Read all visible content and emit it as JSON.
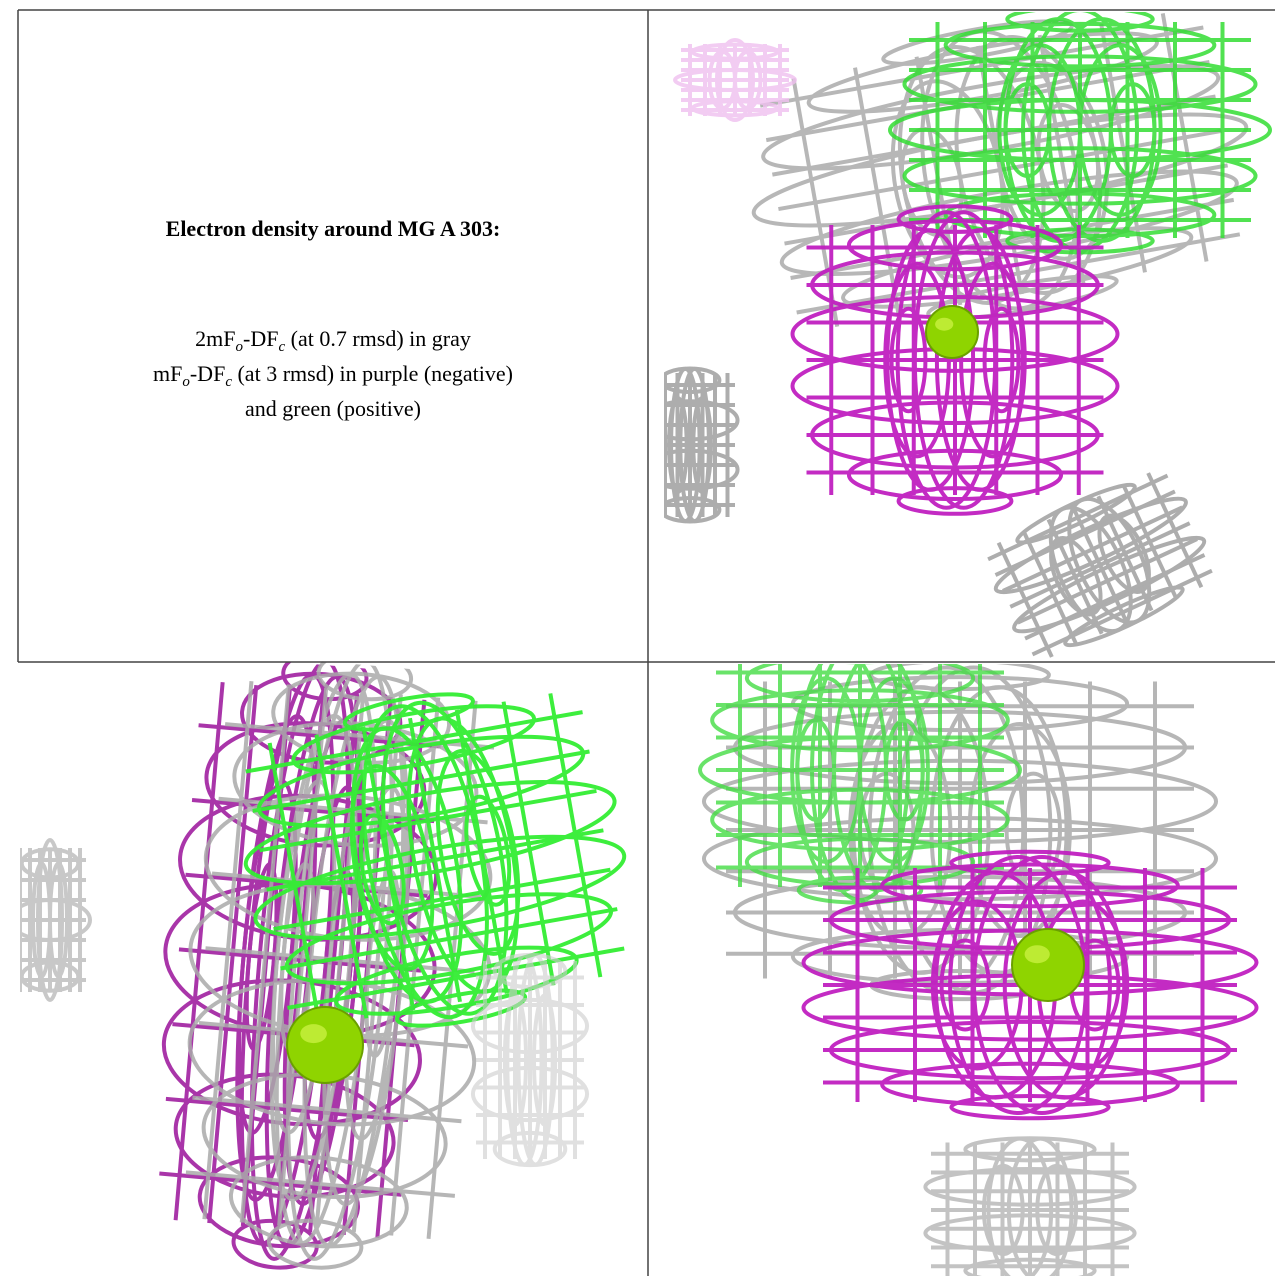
{
  "caption": {
    "title": "Electron density around MG A 303:",
    "lines": [
      [
        {
          "text": "2mF",
          "sub": false
        },
        {
          "text": "o",
          "sub": true
        },
        {
          "text": "-DF",
          "sub": false
        },
        {
          "text": "c",
          "sub": true
        },
        {
          "text": " (at 0.7 rmsd) in gray",
          "sub": false
        }
      ],
      [
        {
          "text": "mF",
          "sub": false
        },
        {
          "text": "o",
          "sub": true
        },
        {
          "text": "-DF",
          "sub": false
        },
        {
          "text": "c",
          "sub": true
        },
        {
          "text": " (at 3 rmsd) in purple (negative)",
          "sub": false
        }
      ],
      [
        {
          "text": "and green (positive)",
          "sub": false
        }
      ]
    ]
  }
}
